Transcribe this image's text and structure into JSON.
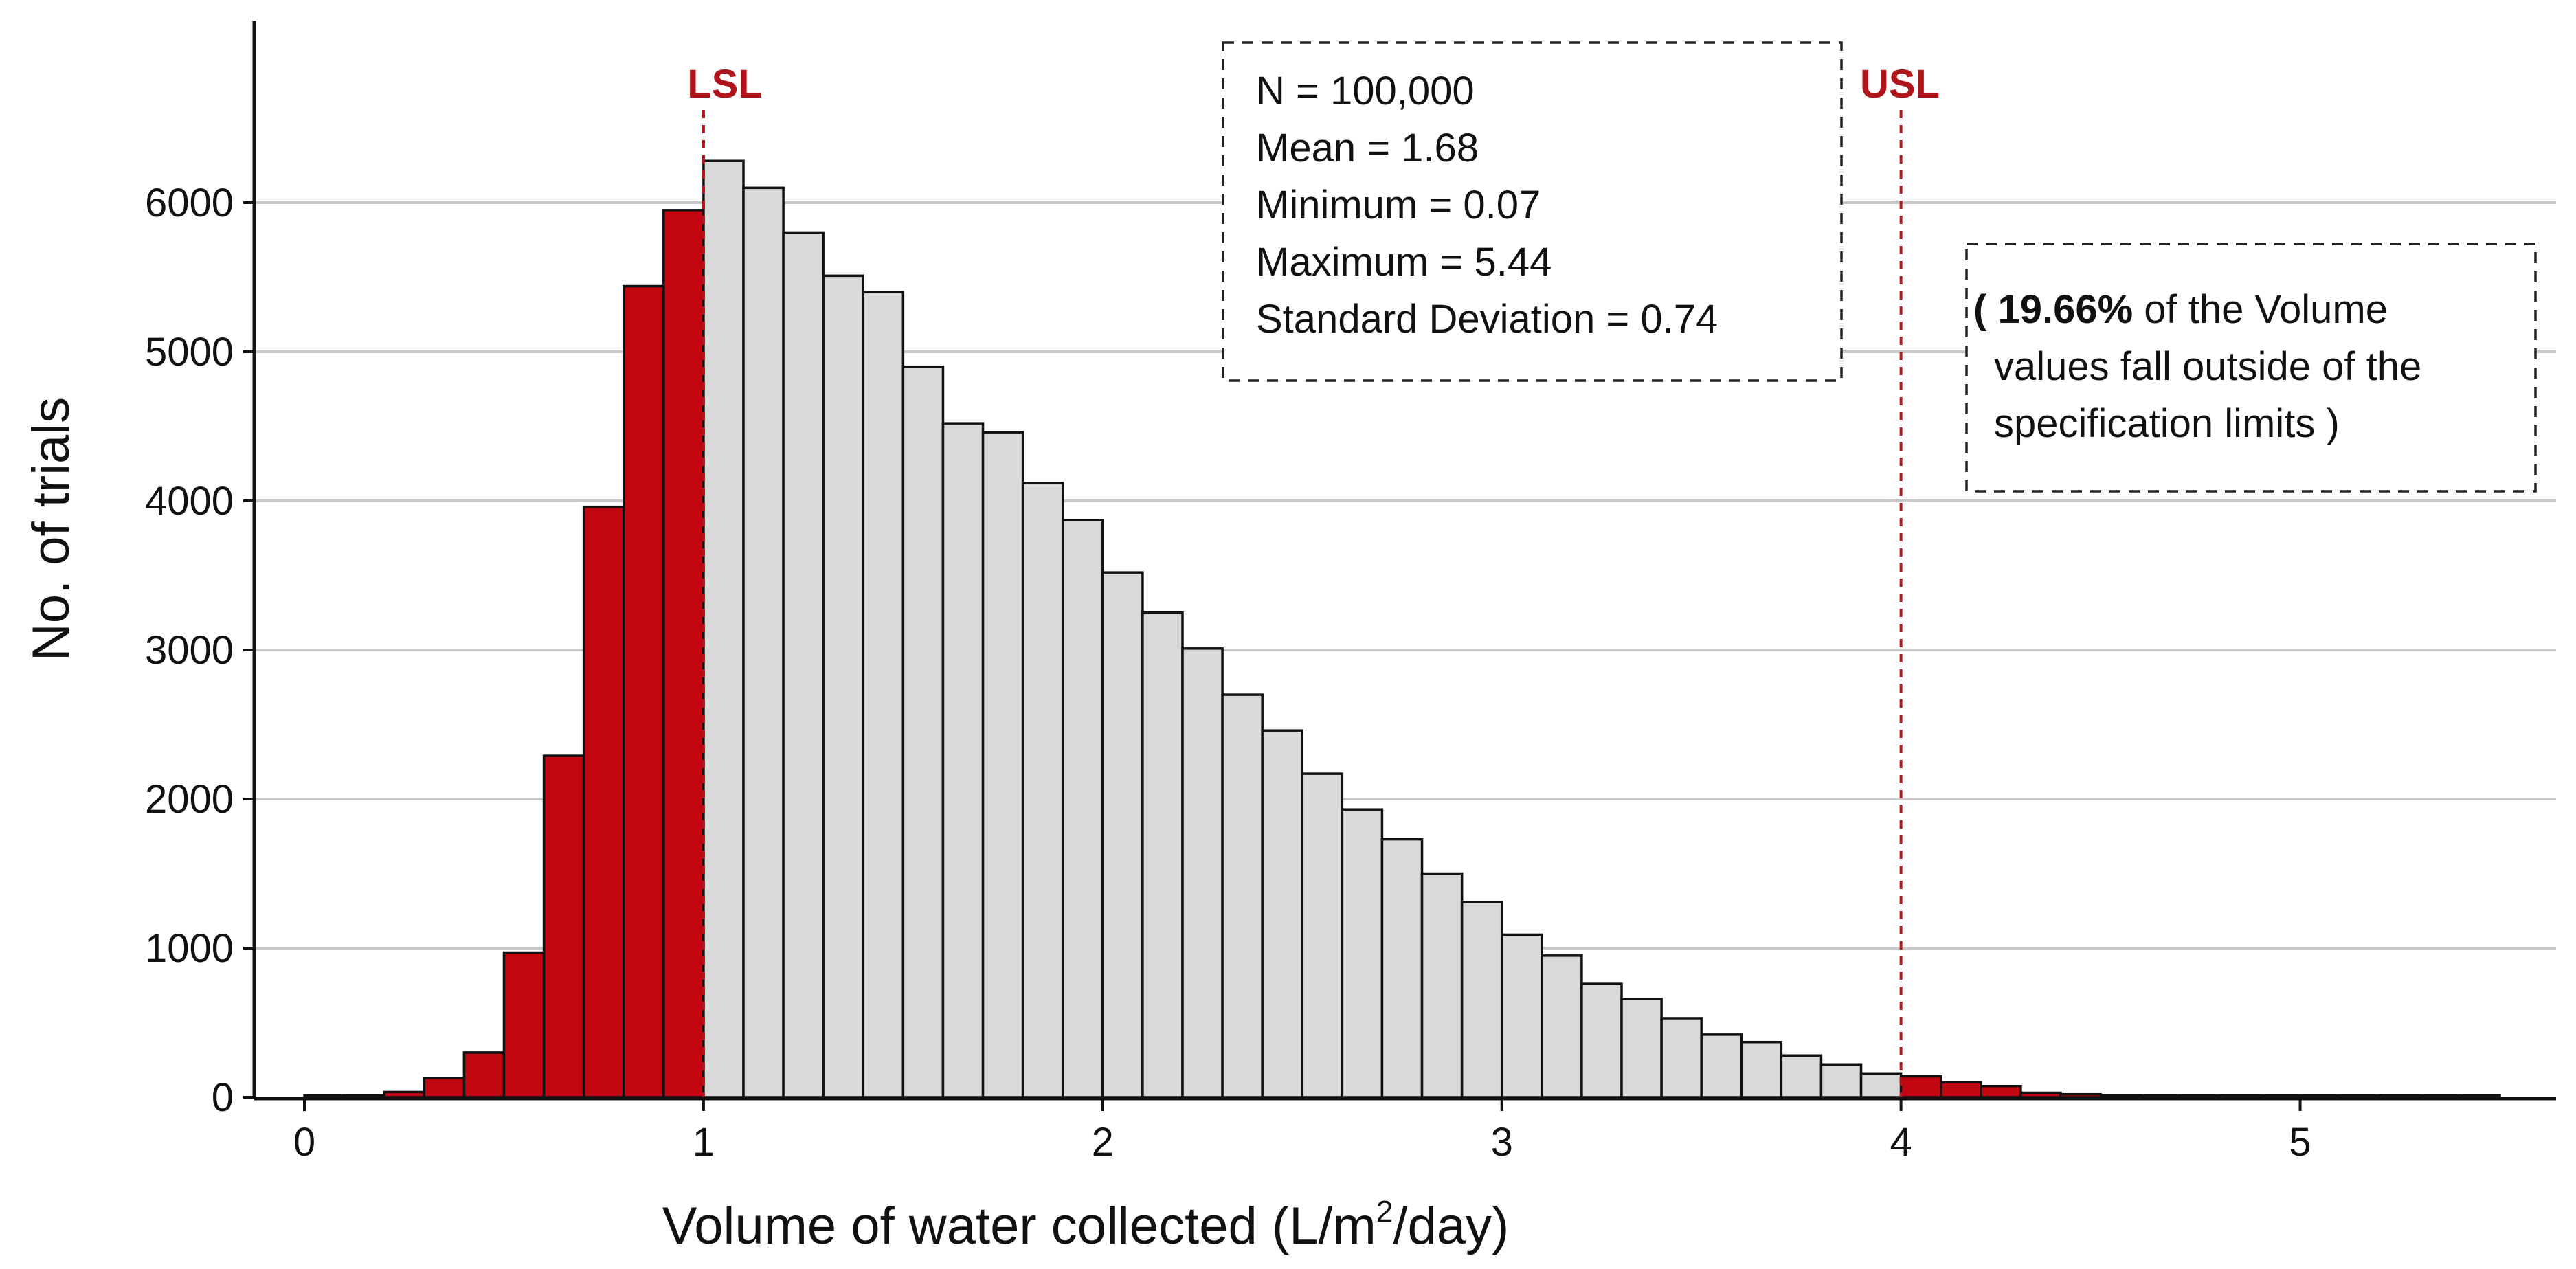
{
  "chart_data": {
    "type": "bar",
    "title": "",
    "xlabel": {
      "prefix": "Volume of water collected (L/m",
      "superscript": "2",
      "suffix": "/day)"
    },
    "ylabel": "No. of trials",
    "xlim": [
      -0.1,
      5.6
    ],
    "ylim": [
      0,
      7000
    ],
    "x_ticks": [
      0,
      1,
      2,
      3,
      4,
      5
    ],
    "x_tick_labels": [
      "0",
      "1",
      "2",
      "3",
      "4",
      "5"
    ],
    "y_ticks": [
      0,
      1000,
      2000,
      3000,
      4000,
      5000,
      6000
    ],
    "y_tick_labels": [
      "0",
      "1000",
      "2000",
      "3000",
      "4000",
      "5000",
      "6000"
    ],
    "gridlines": "horizontal",
    "bin_width": 0.1,
    "bin_starts": [
      0.0,
      0.1,
      0.2,
      0.3,
      0.4,
      0.5,
      0.6,
      0.7,
      0.8,
      0.9,
      1.0,
      1.1,
      1.2,
      1.3,
      1.4,
      1.5,
      1.6,
      1.7,
      1.8,
      1.9,
      2.0,
      2.1,
      2.2,
      2.3,
      2.4,
      2.5,
      2.6,
      2.7,
      2.8,
      2.9,
      3.0,
      3.1,
      3.2,
      3.3,
      3.4,
      3.5,
      3.6,
      3.7,
      3.8,
      3.9,
      4.0,
      4.1,
      4.2,
      4.3,
      4.4,
      4.5,
      4.6,
      4.7,
      4.8,
      4.9,
      5.0,
      5.1,
      5.2,
      5.3,
      5.4
    ],
    "values": [
      5,
      10,
      35,
      130,
      300,
      970,
      2290,
      3960,
      5440,
      5950,
      6280,
      6100,
      5800,
      5510,
      5400,
      4900,
      4520,
      4460,
      4120,
      3870,
      3520,
      3250,
      3010,
      2700,
      2460,
      2170,
      1930,
      1730,
      1500,
      1310,
      1090,
      950,
      760,
      660,
      530,
      420,
      370,
      280,
      220,
      160,
      140,
      100,
      75,
      30,
      20,
      15,
      10,
      8,
      6,
      5,
      4,
      3,
      3,
      2,
      2
    ],
    "specification_limits": {
      "LSL": 1.0,
      "USL": 4.0
    },
    "spec_labels": {
      "lower": "LSL",
      "upper": "USL"
    },
    "colors": {
      "outside": "#c1060f",
      "inside": "#d9d9d9",
      "edge": "#111111",
      "spec": "#b0151c",
      "grid": "#c8c8c8"
    },
    "stats_box": {
      "lines": [
        "N = 100,000",
        "Mean = 1.68",
        "Minimum = 0.07",
        "Maximum = 5.44",
        "Standard Deviation = 0.74"
      ]
    },
    "annotation": {
      "open": "( ",
      "bold": "19.66%",
      "rest_line1": " of the Volume",
      "line2": "values fall outside of the",
      "line3": "specification limits )"
    }
  }
}
